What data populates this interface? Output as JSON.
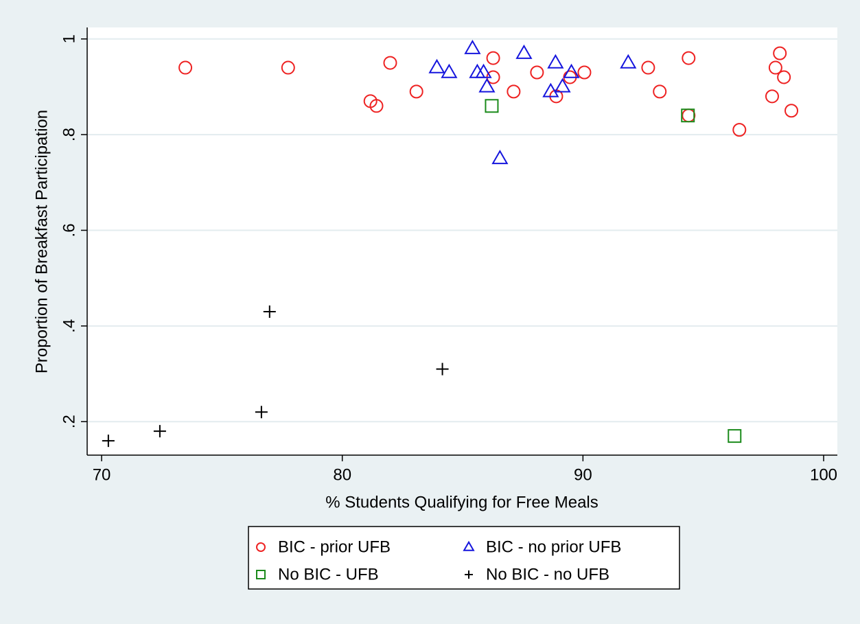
{
  "chart_data": {
    "type": "scatter",
    "x_label": "% Students Qualifying for Free Meals",
    "y_label": "Proportion of Breakfast Participation",
    "xlim": [
      69.4,
      100.57
    ],
    "ylim": [
      0.13,
      1.024
    ],
    "xticks": [
      70,
      80,
      90,
      100
    ],
    "yticks": [
      {
        "value": 0.2,
        "label": ".2"
      },
      {
        "value": 0.4,
        "label": ".4"
      },
      {
        "value": 0.6,
        "label": ".6"
      },
      {
        "value": 0.8,
        "label": ".8"
      },
      1
    ],
    "grid": true,
    "legend": "bottom",
    "series": [
      {
        "name": "BIC - prior UFB",
        "color": "#ee2222",
        "marker": "circle",
        "x": [
          73.48,
          77.75,
          81.99,
          81.17,
          81.42,
          83.08,
          86.27,
          86.27,
          87.12,
          88.09,
          88.89,
          89.46,
          90.06,
          92.71,
          93.19,
          94.39,
          94.39,
          96.5,
          97.86,
          98.0,
          98.18,
          98.35,
          98.66
        ],
        "values": [
          0.94,
          0.94,
          0.95,
          0.87,
          0.86,
          0.89,
          0.96,
          0.92,
          0.89,
          0.93,
          0.88,
          0.92,
          0.93,
          0.94,
          0.89,
          0.96,
          0.84,
          0.81,
          0.88,
          0.94,
          0.97,
          0.92,
          0.85
        ]
      },
      {
        "name": "BIC - no prior UFB",
        "color": "#1515dd",
        "marker": "triangle",
        "x": [
          85.41,
          83.93,
          84.44,
          85.61,
          85.87,
          86.01,
          86.55,
          87.55,
          88.86,
          88.66,
          89.15,
          89.52,
          91.88
        ],
        "values": [
          0.98,
          0.94,
          0.93,
          0.93,
          0.93,
          0.9,
          0.75,
          0.97,
          0.95,
          0.89,
          0.9,
          0.93,
          0.95
        ]
      },
      {
        "name": "No BIC - UFB",
        "color": "#1a8a1a",
        "marker": "square",
        "x": [
          86.21,
          94.36,
          96.3
        ],
        "values": [
          0.86,
          0.84,
          0.17
        ]
      },
      {
        "name": "No BIC - no UFB",
        "color": "#000000",
        "marker": "plus",
        "x": [
          70.28,
          72.42,
          76.64,
          76.98,
          84.16
        ],
        "values": [
          0.16,
          0.18,
          0.22,
          0.43,
          0.31
        ]
      }
    ]
  }
}
